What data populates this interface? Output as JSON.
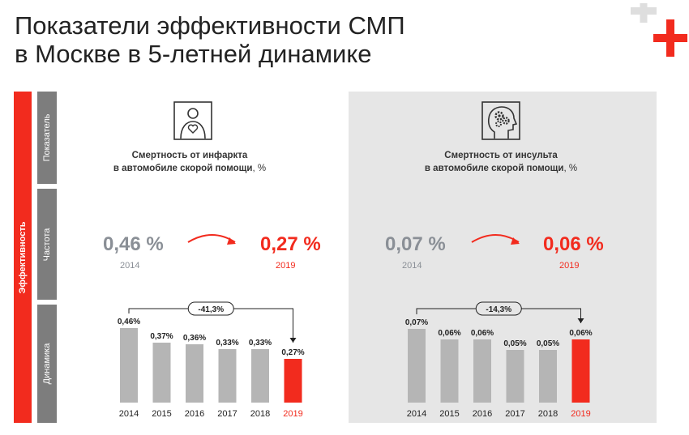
{
  "title": {
    "line1": "Показатели эффективности СМП",
    "line2": "в Москве в 5-летней динамике"
  },
  "colors": {
    "accent": "#f22b1e",
    "bar": "#b5b5b5",
    "side": "#7d7d7d",
    "panel_bg": "#e6e6e6"
  },
  "side": {
    "main": "Эффективность",
    "rows": [
      "Показатель",
      "Частота",
      "Динамика"
    ]
  },
  "panels": [
    {
      "icon": "person-heart-icon",
      "metric_line1": "Смертность от инфаркта",
      "metric_line2": "в автомобиле скорой помощи",
      "metric_unit": ", %",
      "from_value": "0,46 %",
      "from_year": "2014",
      "to_value": "0,27 %",
      "to_year": "2019",
      "change": "-41,3%"
    },
    {
      "icon": "head-gears-icon",
      "metric_line1": "Смертность от инсульта",
      "metric_line2": "в автомобиле скорой помощи",
      "metric_unit": ", %",
      "from_value": "0,07 %",
      "from_year": "2014",
      "to_value": "0,06 %",
      "to_year": "2019",
      "change": "-14,3%"
    }
  ],
  "chart_data": [
    {
      "type": "bar",
      "categories": [
        "2014",
        "2015",
        "2016",
        "2017",
        "2018",
        "2019"
      ],
      "values": [
        0.46,
        0.37,
        0.36,
        0.33,
        0.33,
        0.27
      ],
      "labels": [
        "0,46%",
        "0,37%",
        "0,36%",
        "0,33%",
        "0,33%",
        "0,27%"
      ],
      "highlight_index": 5,
      "annotation": "-41,3%",
      "title": "",
      "xlabel": "",
      "ylabel": "",
      "grid": false
    },
    {
      "type": "bar",
      "categories": [
        "2014",
        "2015",
        "2016",
        "2017",
        "2018",
        "2019"
      ],
      "values": [
        0.07,
        0.06,
        0.06,
        0.05,
        0.05,
        0.06
      ],
      "labels": [
        "0,07%",
        "0,06%",
        "0,06%",
        "0,05%",
        "0,05%",
        "0,06%"
      ],
      "highlight_index": 5,
      "annotation": "-14,3%",
      "title": "",
      "xlabel": "",
      "ylabel": "",
      "grid": false
    }
  ]
}
